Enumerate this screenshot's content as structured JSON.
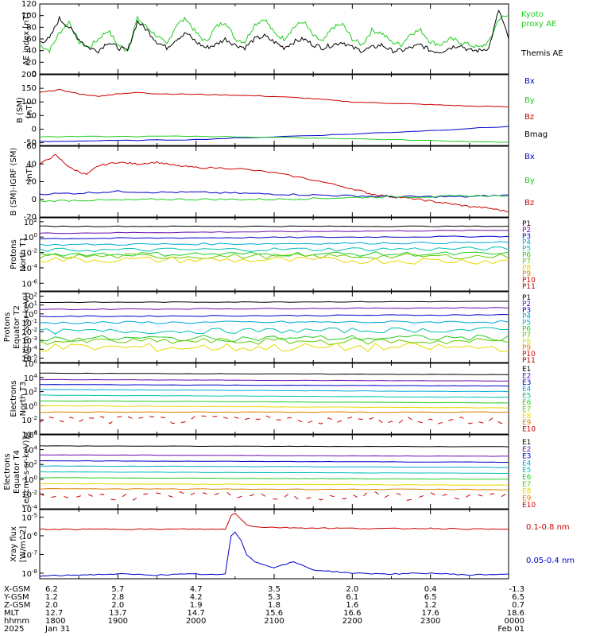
{
  "colors": {
    "black": "#000000",
    "green": "#22cc22",
    "red": "#cc0000",
    "blue": "#0000cc",
    "purple": "#6a0dad",
    "cyan": "#00a8d8",
    "teal": "#00c0b0",
    "lime": "#66cc00",
    "yellow": "#e8d800",
    "orange": "#e08000",
    "darkred": "#aa0000"
  },
  "chart_data": [
    {
      "type": "line",
      "ylabel": "AE index [nT]",
      "ylim": [
        0,
        120
      ],
      "yticks": [
        "120",
        "100",
        "80",
        "60",
        "40",
        "20",
        "0"
      ],
      "legend": [
        "Kyoto proxy AE",
        "Themis AE"
      ],
      "series": [
        {
          "name": "Kyoto proxy AE",
          "x": [
            0,
            5,
            10,
            15,
            20,
            25,
            30,
            35,
            40,
            45,
            50,
            55,
            60,
            65,
            70,
            75,
            80,
            85,
            90,
            95,
            100,
            105,
            110,
            115,
            120,
            125,
            130,
            135,
            140,
            145,
            150,
            155,
            160,
            165,
            170,
            175,
            180,
            185,
            190,
            195,
            200,
            205,
            210,
            215,
            220,
            225,
            230,
            235,
            240
          ],
          "values": [
            50,
            40,
            70,
            90,
            55,
            45,
            60,
            75,
            50,
            40,
            95,
            80,
            65,
            50,
            85,
            95,
            70,
            55,
            80,
            90,
            60,
            55,
            85,
            95,
            70,
            60,
            80,
            90,
            65,
            55,
            80,
            85,
            60,
            50,
            75,
            70,
            55,
            50,
            70,
            75,
            55,
            50,
            60,
            55,
            50,
            45,
            55,
            95,
            100
          ]
        },
        {
          "name": "Themis AE",
          "x": [
            0,
            5,
            10,
            15,
            20,
            25,
            30,
            35,
            40,
            45,
            50,
            55,
            60,
            65,
            70,
            75,
            80,
            85,
            90,
            95,
            100,
            105,
            110,
            115,
            120,
            125,
            130,
            135,
            140,
            145,
            150,
            155,
            160,
            165,
            170,
            175,
            180,
            185,
            190,
            195,
            200,
            205,
            210,
            215,
            220,
            225,
            230,
            235,
            240
          ],
          "values": [
            55,
            60,
            95,
            80,
            60,
            45,
            40,
            55,
            45,
            40,
            90,
            75,
            55,
            45,
            60,
            70,
            55,
            45,
            50,
            60,
            50,
            45,
            60,
            65,
            55,
            45,
            55,
            60,
            50,
            45,
            50,
            55,
            45,
            40,
            45,
            50,
            40,
            40,
            45,
            50,
            40,
            38,
            45,
            50,
            40,
            40,
            45,
            110,
            60
          ]
        }
      ]
    },
    {
      "type": "line",
      "ylabel": "B (SM) [nT]",
      "ylim": [
        -60,
        200
      ],
      "yticks": [
        "200",
        "150",
        "100",
        "50",
        "0",
        "-50"
      ],
      "legend": [
        "Bx",
        "By",
        "Bz",
        "Bmag"
      ],
      "series": [
        {
          "name": "Bz",
          "x": [
            0,
            10,
            20,
            30,
            40,
            50,
            60,
            80,
            100,
            120,
            140,
            160,
            180,
            200,
            220,
            240
          ],
          "values": [
            135,
            145,
            130,
            120,
            130,
            135,
            130,
            128,
            125,
            120,
            112,
            100,
            95,
            90,
            85,
            82
          ]
        },
        {
          "name": "Bx",
          "x": [
            0,
            40,
            80,
            120,
            160,
            200,
            240
          ],
          "values": [
            -45,
            -42,
            -38,
            -28,
            -18,
            -5,
            10
          ]
        },
        {
          "name": "By",
          "x": [
            0,
            40,
            80,
            120,
            160,
            200,
            240
          ],
          "values": [
            -28,
            -27,
            -26,
            -30,
            -35,
            -42,
            -48
          ]
        }
      ]
    },
    {
      "type": "line",
      "ylabel": "B (SM)-IGRF (SM) [nT]",
      "ylim": [
        -20,
        60
      ],
      "yticks": [
        "60",
        "40",
        "20",
        "0",
        "-20"
      ],
      "legend": [
        "Bx",
        "By",
        "Bz"
      ],
      "series": [
        {
          "name": "Bz",
          "x": [
            0,
            8,
            16,
            24,
            30,
            40,
            50,
            60,
            70,
            80,
            100,
            120,
            140,
            160,
            170,
            180,
            190,
            200,
            210,
            220,
            230,
            240
          ],
          "values": [
            40,
            50,
            35,
            28,
            38,
            42,
            40,
            42,
            38,
            36,
            35,
            30,
            22,
            12,
            6,
            3,
            1,
            -2,
            -5,
            -8,
            -10,
            -14
          ]
        },
        {
          "name": "Bx",
          "x": [
            0,
            20,
            40,
            60,
            80,
            100,
            120,
            140,
            160,
            180,
            200,
            220,
            240
          ],
          "values": [
            6,
            7,
            9,
            8,
            8,
            7,
            6,
            5,
            4,
            3,
            3,
            3,
            5
          ]
        },
        {
          "name": "By",
          "x": [
            0,
            20,
            40,
            60,
            80,
            100,
            120,
            140,
            160,
            180,
            200,
            220,
            240
          ],
          "values": [
            -2,
            -1,
            -1,
            0,
            0,
            0,
            0,
            1,
            2,
            3,
            3,
            4,
            4
          ]
        }
      ]
    },
    {
      "type": "line",
      "ylabel": "Protons North T1",
      "yscale": "log",
      "yticks": [
        "10^2",
        "10^0",
        "10^-2",
        "10^-4",
        "10^-6"
      ],
      "legend": [
        "P1",
        "P2",
        "P3",
        "P4",
        "P5",
        "P6",
        "P7",
        "P8",
        "P9",
        "P10",
        "P11"
      ]
    },
    {
      "type": "line",
      "ylabel": "Protons Equator T2 [p/(cm^2-s-sr-keV)]",
      "yscale": "log",
      "yticks": [
        "10^2",
        "10^1",
        "10^0",
        "10^-1",
        "10^-2",
        "10^-3",
        "10^-4",
        "10^-5"
      ],
      "legend": [
        "P1",
        "P2",
        "P3",
        "P4",
        "P5",
        "P6",
        "P7",
        "P8",
        "P9",
        "P10",
        "P11"
      ]
    },
    {
      "type": "line",
      "ylabel": "Electrons North T3",
      "yscale": "log",
      "yticks": [
        "10^6",
        "10^4",
        "10^2",
        "10^0",
        "10^-2",
        "10^-4"
      ],
      "legend": [
        "E1",
        "E2",
        "E3",
        "E4",
        "E5",
        "E6",
        "E7",
        "E8",
        "E9",
        "E10"
      ]
    },
    {
      "type": "line",
      "ylabel": "Electrons Equator T4 [e/(cm^2-s-sr-keV)]",
      "yscale": "log",
      "yticks": [
        "10^6",
        "10^4",
        "10^2",
        "10^0",
        "10^-2",
        "10^-4"
      ],
      "legend": [
        "E1",
        "E2",
        "E3",
        "E4",
        "E5",
        "E6",
        "E7",
        "E8",
        "E9",
        "E10"
      ]
    },
    {
      "type": "line",
      "ylabel": "Xray flux [W/m^2]",
      "yscale": "log",
      "yticks": [
        "10^-5",
        "10^-6",
        "10^-7",
        "10^-8"
      ],
      "legend": [
        "0.1-0.8 nm",
        "0.05-0.4 nm"
      ],
      "series": [
        {
          "name": "0.1-0.8 nm",
          "x": [
            0,
            20,
            40,
            60,
            80,
            90,
            95,
            98,
            100,
            103,
            106,
            110,
            120,
            140,
            160,
            180,
            200,
            220,
            240
          ],
          "values": [
            "2.2e-6",
            "2.2e-6",
            "2.3e-6",
            "2.2e-6",
            "2.3e-6",
            "2.2e-6",
            "2.3e-6",
            "1.2e-5",
            "1.6e-5",
            "8e-6",
            "4e-6",
            "3e-6",
            "2.8e-6",
            "2.6e-6",
            "2.5e-6",
            "2.4e-6",
            "2.5e-6",
            "2.3e-6",
            "2.2e-6"
          ]
        },
        {
          "name": "0.05-0.4 nm",
          "x": [
            0,
            20,
            40,
            60,
            80,
            90,
            95,
            98,
            100,
            103,
            106,
            110,
            120,
            130,
            140,
            160,
            180,
            200,
            220,
            240
          ],
          "values": [
            "7e-9",
            "8e-9",
            "9e-9",
            "8e-9",
            "9e-9",
            "8e-9",
            "9e-9",
            "1e-6",
            "1.6e-6",
            "6e-7",
            "1e-7",
            "4e-8",
            "2e-8",
            "4e-8",
            "1.5e-8",
            "1e-8",
            "9e-9",
            "1e-8",
            "8e-9",
            "9e-9"
          ]
        }
      ]
    }
  ],
  "xaxis": {
    "row_labels": [
      "X-GSM",
      "Y-GSM",
      "Z-GSM",
      "MLT",
      "hhmm",
      "2025"
    ],
    "columns": [
      {
        "x": 0,
        "vals": [
          "6.2",
          "1.2",
          "2.0",
          "12.7",
          "1800",
          "Jan 31"
        ]
      },
      {
        "x": 40,
        "vals": [
          "5.7",
          "2.8",
          "2.0",
          "13.7",
          "1900",
          ""
        ]
      },
      {
        "x": 80,
        "vals": [
          "4.7",
          "4.2",
          "1.9",
          "14.7",
          "2000",
          ""
        ]
      },
      {
        "x": 120,
        "vals": [
          "3.5",
          "5.3",
          "1.8",
          "15.6",
          "2100",
          ""
        ]
      },
      {
        "x": 160,
        "vals": [
          "2.0",
          "6.1",
          "1.6",
          "16.6",
          "2200",
          ""
        ]
      },
      {
        "x": 200,
        "vals": [
          "0.4",
          "6.5",
          "1.2",
          "17.6",
          "2300",
          ""
        ]
      },
      {
        "x": 240,
        "vals": [
          "-1.3",
          "6.5",
          "0.7",
          "18.6",
          "0000",
          "Feb 01"
        ]
      }
    ]
  },
  "labels": {
    "ae_ylabel": "AE index [nT]",
    "b_ylabel": "B (SM) [nT]",
    "bigrf_ylabel": "B (SM)-IGRF (SM) [nT]",
    "pn_ylabel": "Protons North T1",
    "pe_ylabel": "Protons Equator T2 [p/(cm²-s-sr-keV)]",
    "en_ylabel": "Electrons North T3",
    "ee_ylabel": "Electrons Equator T4 [e/(cm²-s-sr-keV)]",
    "xr_ylabel": "Xray flux [W/m^2]"
  }
}
